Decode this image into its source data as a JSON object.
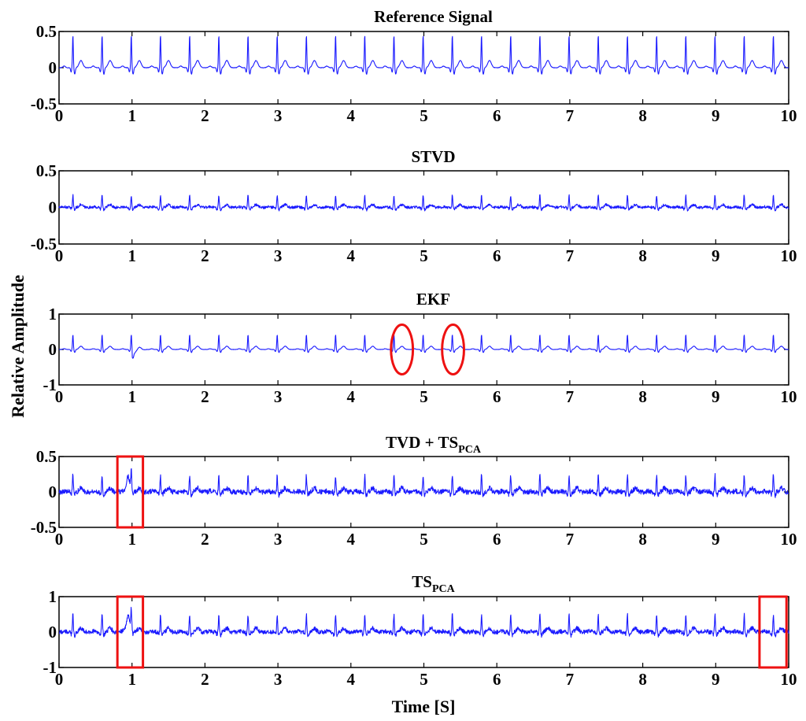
{
  "figure": {
    "ylabel": "Relative Amplitude",
    "xlabel": "Time  [S]"
  },
  "chart_data": [
    {
      "type": "line",
      "title": "Reference Signal",
      "x_ticks": [
        "0",
        "1",
        "2",
        "3",
        "4",
        "5",
        "6",
        "7",
        "8",
        "9",
        "10"
      ],
      "y_ticks": [
        "0.5",
        "0",
        "-0.5"
      ],
      "xlim": [
        0,
        10
      ],
      "ylim": [
        -0.5,
        0.5
      ],
      "series": [
        {
          "signal": "ECG",
          "beats_per_10s": 25,
          "peak_amplitude": 0.45,
          "noise_level": 0.003,
          "color": "#1a1aff"
        }
      ],
      "highlights": []
    },
    {
      "type": "line",
      "title": "STVD",
      "x_ticks": [
        "0",
        "1",
        "2",
        "3",
        "4",
        "5",
        "6",
        "7",
        "8",
        "9",
        "10"
      ],
      "y_ticks": [
        "0.5",
        "0",
        "-0.5"
      ],
      "xlim": [
        0,
        10
      ],
      "ylim": [
        -0.5,
        0.5
      ],
      "series": [
        {
          "signal": "ECG",
          "beats_per_10s": 25,
          "peak_amplitude": 0.17,
          "noise_level": 0.018,
          "color": "#1a1aff"
        }
      ],
      "highlights": []
    },
    {
      "type": "line",
      "title": "EKF",
      "x_ticks": [
        "0",
        "1",
        "2",
        "3",
        "4",
        "5",
        "6",
        "7",
        "8",
        "9",
        "10"
      ],
      "y_ticks": [
        "1",
        "0",
        "-1"
      ],
      "xlim": [
        0,
        10
      ],
      "ylim": [
        -1,
        1
      ],
      "series": [
        {
          "signal": "ECG",
          "beats_per_10s": 25,
          "peak_amplitude": 0.42,
          "noise_level": 0.004,
          "color": "#1a1aff"
        }
      ],
      "highlights": [
        {
          "shape": "ellipse",
          "x_range": [
            4.55,
            4.85
          ],
          "y_range": [
            -0.7,
            0.7
          ]
        },
        {
          "shape": "ellipse",
          "x_range": [
            5.25,
            5.55
          ],
          "y_range": [
            -0.7,
            0.7
          ]
        }
      ]
    },
    {
      "type": "line",
      "title": "TVD + TS",
      "title_subscript": "PCA",
      "x_ticks": [
        "0",
        "1",
        "2",
        "3",
        "4",
        "5",
        "6",
        "7",
        "8",
        "9",
        "10"
      ],
      "y_ticks": [
        "0.5",
        "0",
        "-0.5"
      ],
      "xlim": [
        0,
        10
      ],
      "ylim": [
        -0.5,
        0.5
      ],
      "series": [
        {
          "signal": "ECG",
          "beats_per_10s": 25,
          "peak_amplitude": 0.24,
          "noise_level": 0.035,
          "color": "#1a1aff"
        }
      ],
      "highlights": [
        {
          "shape": "rect",
          "x_range": [
            0.8,
            1.15
          ],
          "y_range": [
            -0.5,
            0.5
          ]
        }
      ]
    },
    {
      "type": "line",
      "title": "TS",
      "title_subscript": "PCA",
      "x_ticks": [
        "0",
        "1",
        "2",
        "3",
        "4",
        "5",
        "6",
        "7",
        "8",
        "9",
        "10"
      ],
      "y_ticks": [
        "1",
        "0",
        "-1"
      ],
      "xlim": [
        0,
        10
      ],
      "ylim": [
        -1,
        1
      ],
      "series": [
        {
          "signal": "ECG",
          "beats_per_10s": 25,
          "peak_amplitude": 0.5,
          "noise_level": 0.06,
          "color": "#1a1aff"
        }
      ],
      "highlights": [
        {
          "shape": "rect",
          "x_range": [
            0.8,
            1.15
          ],
          "y_range": [
            -1,
            1
          ]
        },
        {
          "shape": "rect",
          "x_range": [
            9.6,
            9.97
          ],
          "y_range": [
            -1,
            1
          ]
        }
      ]
    }
  ]
}
